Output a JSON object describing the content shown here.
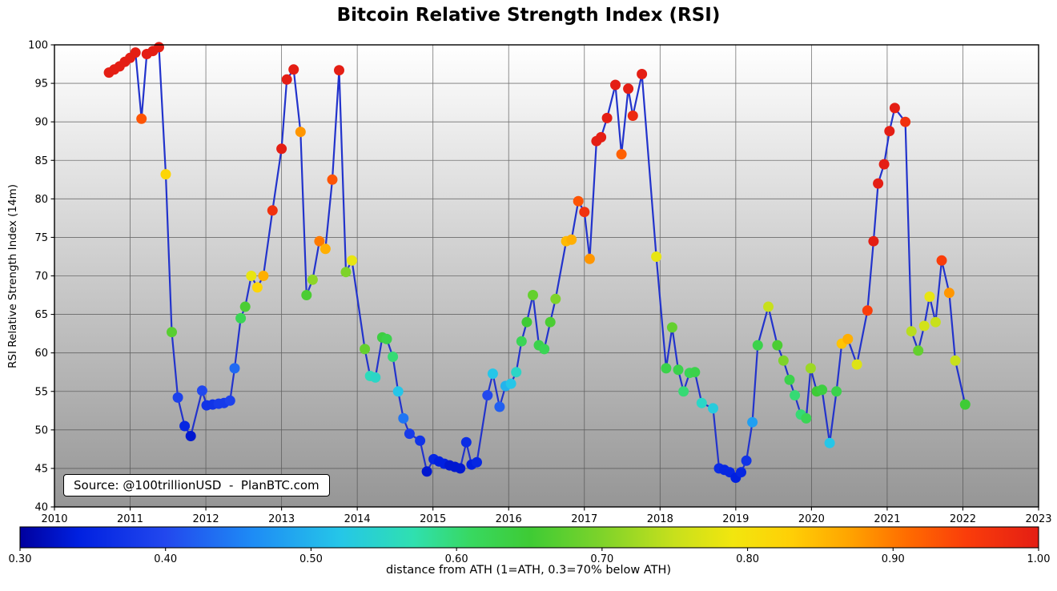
{
  "chart_data": {
    "type": "scatter",
    "title": "Bitcoin Relative Strength Index (RSI)",
    "ylabel": "RSI Relative Strength Index (14m)",
    "xlabel": "",
    "colorbar_label": "distance from ATH (1=ATH, 0.3=70% below ATH)",
    "source_note": "Source: @100trillionUSD  -  PlanBTC.com",
    "xlim": [
      2010,
      2023
    ],
    "ylim": [
      40,
      100
    ],
    "x_ticks": [
      2010,
      2011,
      2012,
      2013,
      2014,
      2015,
      2016,
      2017,
      2018,
      2019,
      2020,
      2021,
      2022,
      2023
    ],
    "y_ticks": [
      40,
      45,
      50,
      55,
      60,
      65,
      70,
      75,
      80,
      85,
      90,
      95,
      100
    ],
    "colorbar_ticks": [
      "0.30",
      "0.40",
      "0.50",
      "0.60",
      "0.70",
      "0.80",
      "0.90",
      "1.00"
    ],
    "colorbar_range": [
      0.3,
      1.0
    ],
    "grid": true,
    "legend_position": "none",
    "line_color": "#2233cc",
    "plot_bg_top": "#ffffff",
    "plot_bg_bottom": "#969696",
    "grid_color": "#4a4a4a",
    "colormap": [
      [
        0.3,
        "#00009e"
      ],
      [
        0.34,
        "#0020e0"
      ],
      [
        0.4,
        "#2248ee"
      ],
      [
        0.46,
        "#1e8cf5"
      ],
      [
        0.52,
        "#25c6e8"
      ],
      [
        0.57,
        "#2fe0b0"
      ],
      [
        0.61,
        "#38d860"
      ],
      [
        0.65,
        "#3ecb35"
      ],
      [
        0.7,
        "#7ed32a"
      ],
      [
        0.75,
        "#c8e01c"
      ],
      [
        0.79,
        "#f2e60e"
      ],
      [
        0.83,
        "#ffcf06"
      ],
      [
        0.87,
        "#ffa400"
      ],
      [
        0.91,
        "#ff6c00"
      ],
      [
        0.95,
        "#fa3d0a"
      ],
      [
        1.0,
        "#e41e14"
      ]
    ],
    "series_note": "points = [year, RSI value, distance-from-ATH color value]",
    "points": [
      [
        2010.72,
        96.4,
        1.0
      ],
      [
        2010.79,
        96.8,
        1.0
      ],
      [
        2010.86,
        97.2,
        1.0
      ],
      [
        2010.93,
        97.8,
        1.0
      ],
      [
        2011.0,
        98.3,
        1.0
      ],
      [
        2011.07,
        99.0,
        1.0
      ],
      [
        2011.15,
        90.4,
        0.93
      ],
      [
        2011.22,
        98.8,
        1.0
      ],
      [
        2011.3,
        99.2,
        1.0
      ],
      [
        2011.38,
        99.7,
        1.0
      ],
      [
        2011.47,
        83.2,
        0.82
      ],
      [
        2011.55,
        62.7,
        0.67
      ],
      [
        2011.63,
        54.2,
        0.39
      ],
      [
        2011.72,
        50.5,
        0.35
      ],
      [
        2011.8,
        49.2,
        0.33
      ],
      [
        2011.95,
        55.1,
        0.4
      ],
      [
        2012.01,
        53.2,
        0.37
      ],
      [
        2012.09,
        53.3,
        0.37
      ],
      [
        2012.17,
        53.4,
        0.38
      ],
      [
        2012.24,
        53.5,
        0.38
      ],
      [
        2012.32,
        53.8,
        0.39
      ],
      [
        2012.38,
        58.0,
        0.43
      ],
      [
        2012.46,
        64.5,
        0.62
      ],
      [
        2012.52,
        66.0,
        0.66
      ],
      [
        2012.6,
        70.0,
        0.78
      ],
      [
        2012.68,
        68.5,
        0.82
      ],
      [
        2012.76,
        70.0,
        0.86
      ],
      [
        2012.88,
        78.5,
        0.97
      ],
      [
        2013.0,
        86.5,
        1.0
      ],
      [
        2013.07,
        95.5,
        1.0
      ],
      [
        2013.16,
        96.8,
        1.0
      ],
      [
        2013.25,
        88.7,
        0.88
      ],
      [
        2013.33,
        67.5,
        0.66
      ],
      [
        2013.41,
        69.5,
        0.71
      ],
      [
        2013.5,
        74.5,
        0.9
      ],
      [
        2013.58,
        73.5,
        0.86
      ],
      [
        2013.67,
        82.5,
        0.93
      ],
      [
        2013.76,
        96.7,
        1.0
      ],
      [
        2013.85,
        70.5,
        0.7
      ],
      [
        2013.93,
        72.0,
        0.78
      ],
      [
        2014.1,
        60.5,
        0.68
      ],
      [
        2014.17,
        57.0,
        0.56
      ],
      [
        2014.24,
        56.8,
        0.55
      ],
      [
        2014.33,
        62.0,
        0.64
      ],
      [
        2014.39,
        61.8,
        0.63
      ],
      [
        2014.47,
        59.5,
        0.6
      ],
      [
        2014.54,
        55.0,
        0.52
      ],
      [
        2014.61,
        51.5,
        0.44
      ],
      [
        2014.69,
        49.5,
        0.38
      ],
      [
        2014.83,
        48.6,
        0.37
      ],
      [
        2014.92,
        44.6,
        0.33
      ],
      [
        2015.01,
        46.2,
        0.35
      ],
      [
        2015.08,
        45.9,
        0.34
      ],
      [
        2015.15,
        45.6,
        0.34
      ],
      [
        2015.22,
        45.4,
        0.33
      ],
      [
        2015.29,
        45.2,
        0.33
      ],
      [
        2015.36,
        45.0,
        0.33
      ],
      [
        2015.44,
        48.4,
        0.36
      ],
      [
        2015.51,
        45.5,
        0.34
      ],
      [
        2015.58,
        45.8,
        0.35
      ],
      [
        2015.72,
        54.5,
        0.4
      ],
      [
        2015.79,
        57.3,
        0.52
      ],
      [
        2015.88,
        53.0,
        0.42
      ],
      [
        2015.96,
        55.7,
        0.5
      ],
      [
        2016.03,
        56.0,
        0.52
      ],
      [
        2016.1,
        57.5,
        0.55
      ],
      [
        2016.17,
        61.5,
        0.62
      ],
      [
        2016.24,
        64.0,
        0.65
      ],
      [
        2016.32,
        67.5,
        0.68
      ],
      [
        2016.4,
        61.0,
        0.63
      ],
      [
        2016.47,
        60.5,
        0.62
      ],
      [
        2016.55,
        64.0,
        0.66
      ],
      [
        2016.62,
        67.0,
        0.7
      ],
      [
        2016.76,
        74.5,
        0.85
      ],
      [
        2016.83,
        74.7,
        0.86
      ],
      [
        2016.92,
        79.7,
        0.93
      ],
      [
        2017.0,
        78.3,
        0.97
      ],
      [
        2017.07,
        72.2,
        0.88
      ],
      [
        2017.16,
        87.5,
        1.0
      ],
      [
        2017.22,
        88.0,
        1.0
      ],
      [
        2017.3,
        90.5,
        1.0
      ],
      [
        2017.41,
        94.8,
        1.0
      ],
      [
        2017.49,
        85.8,
        0.92
      ],
      [
        2017.58,
        94.3,
        1.0
      ],
      [
        2017.64,
        90.8,
        0.98
      ],
      [
        2017.76,
        96.2,
        1.0
      ],
      [
        2017.95,
        72.5,
        0.78
      ],
      [
        2018.08,
        58.0,
        0.63
      ],
      [
        2018.16,
        63.3,
        0.68
      ],
      [
        2018.24,
        57.8,
        0.63
      ],
      [
        2018.31,
        55.0,
        0.6
      ],
      [
        2018.39,
        57.4,
        0.62
      ],
      [
        2018.46,
        57.5,
        0.63
      ],
      [
        2018.55,
        53.5,
        0.55
      ],
      [
        2018.7,
        52.8,
        0.53
      ],
      [
        2018.78,
        45.0,
        0.36
      ],
      [
        2018.85,
        44.8,
        0.35
      ],
      [
        2018.92,
        44.5,
        0.35
      ],
      [
        2019.0,
        43.8,
        0.34
      ],
      [
        2019.07,
        44.5,
        0.35
      ],
      [
        2019.14,
        46.0,
        0.37
      ],
      [
        2019.22,
        51.0,
        0.48
      ],
      [
        2019.29,
        61.0,
        0.63
      ],
      [
        2019.43,
        66.0,
        0.75
      ],
      [
        2019.55,
        61.0,
        0.66
      ],
      [
        2019.63,
        59.0,
        0.7
      ],
      [
        2019.71,
        56.5,
        0.63
      ],
      [
        2019.78,
        54.5,
        0.6
      ],
      [
        2019.86,
        52.0,
        0.6
      ],
      [
        2019.93,
        51.5,
        0.62
      ],
      [
        2019.99,
        58.0,
        0.72
      ],
      [
        2020.07,
        55.0,
        0.65
      ],
      [
        2020.14,
        55.2,
        0.64
      ],
      [
        2020.24,
        48.3,
        0.52
      ],
      [
        2020.33,
        55.0,
        0.63
      ],
      [
        2020.4,
        61.2,
        0.84
      ],
      [
        2020.48,
        61.8,
        0.86
      ],
      [
        2020.6,
        58.5,
        0.77
      ],
      [
        2020.74,
        65.5,
        0.95
      ],
      [
        2020.82,
        74.5,
        1.0
      ],
      [
        2020.88,
        82.0,
        1.0
      ],
      [
        2020.96,
        84.5,
        1.0
      ],
      [
        2021.03,
        88.8,
        1.0
      ],
      [
        2021.1,
        91.8,
        1.0
      ],
      [
        2021.24,
        90.0,
        0.97
      ],
      [
        2021.32,
        62.8,
        0.74
      ],
      [
        2021.41,
        60.3,
        0.68
      ],
      [
        2021.49,
        63.5,
        0.76
      ],
      [
        2021.56,
        67.3,
        0.78
      ],
      [
        2021.64,
        64.0,
        0.75
      ],
      [
        2021.72,
        72.0,
        0.95
      ],
      [
        2021.82,
        67.8,
        0.88
      ],
      [
        2021.9,
        59.0,
        0.75
      ],
      [
        2022.03,
        53.3,
        0.65
      ]
    ]
  }
}
